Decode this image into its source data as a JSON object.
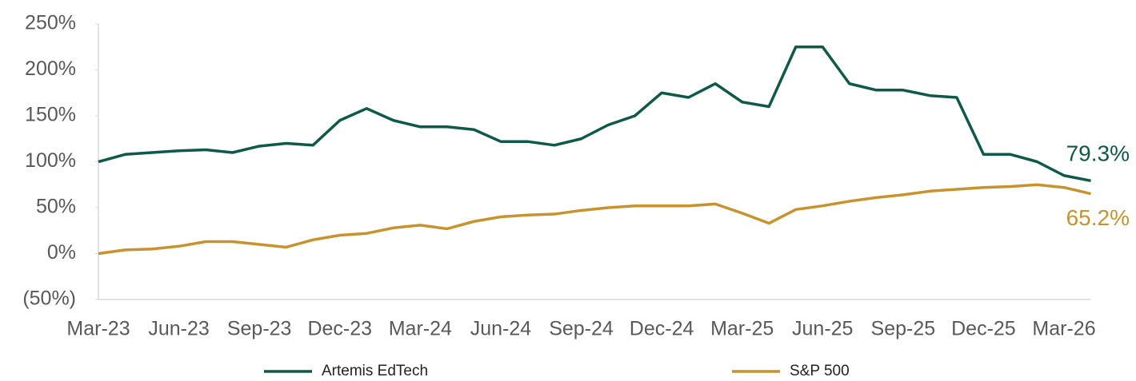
{
  "chart_data": {
    "type": "line",
    "categories": [
      "Mar-23",
      null,
      null,
      "Jun-23",
      null,
      null,
      "Sep-23",
      null,
      null,
      "Dec-23",
      null,
      null,
      "Mar-24",
      null,
      null,
      "Jun-24",
      null,
      null,
      "Sep-24",
      null,
      null,
      "Dec-24",
      null,
      null,
      "Mar-25",
      null,
      null,
      "Jun-25",
      null,
      null,
      "Sep-25",
      null,
      null,
      "Dec-25",
      null,
      null,
      "Mar-26",
      null
    ],
    "series": [
      {
        "name": "Artemis EdTech",
        "color": "#0e5a48",
        "values": [
          100,
          108,
          110,
          112,
          113,
          110,
          117,
          120,
          118,
          145,
          158,
          145,
          138,
          138,
          135,
          122,
          122,
          118,
          125,
          140,
          150,
          175,
          170,
          185,
          165,
          160,
          225,
          225,
          185,
          178,
          178,
          172,
          170,
          108,
          108,
          100,
          85,
          79.3
        ],
        "value_labels": [
          null,
          null,
          null,
          null,
          null,
          null,
          null,
          null,
          null,
          null,
          null,
          null,
          null,
          null,
          null,
          null,
          null,
          null,
          null,
          null,
          null,
          null,
          null,
          null,
          null,
          null,
          null,
          null,
          null,
          null,
          null,
          null,
          null,
          null,
          null,
          null,
          null,
          "79.3%"
        ]
      },
      {
        "name": "S&P 500",
        "color": "#c8932d",
        "values": [
          0,
          4,
          5,
          8,
          13,
          13,
          10,
          7,
          15,
          20,
          22,
          28,
          31,
          27,
          35,
          40,
          42,
          43,
          47,
          50,
          52,
          52,
          52,
          54,
          44,
          33,
          48,
          52,
          57,
          61,
          64,
          68,
          70,
          72,
          73,
          75,
          72,
          65.2
        ],
        "value_labels": [
          null,
          null,
          null,
          null,
          null,
          null,
          null,
          null,
          null,
          null,
          null,
          null,
          null,
          null,
          null,
          null,
          null,
          null,
          null,
          null,
          null,
          null,
          null,
          null,
          null,
          null,
          null,
          null,
          null,
          null,
          null,
          null,
          null,
          null,
          null,
          null,
          null,
          "65.2%"
        ]
      }
    ],
    "ylim": [
      -50,
      250
    ],
    "yticks": [
      {
        "value": -50,
        "label": "(50%)"
      },
      {
        "value": 0,
        "label": "0%"
      },
      {
        "value": 50,
        "label": "50%"
      },
      {
        "value": 100,
        "label": "100%"
      },
      {
        "value": 150,
        "label": "150%"
      },
      {
        "value": 200,
        "label": "200%"
      },
      {
        "value": 250,
        "label": "250%"
      }
    ],
    "grid": false,
    "legend": "bottom"
  }
}
